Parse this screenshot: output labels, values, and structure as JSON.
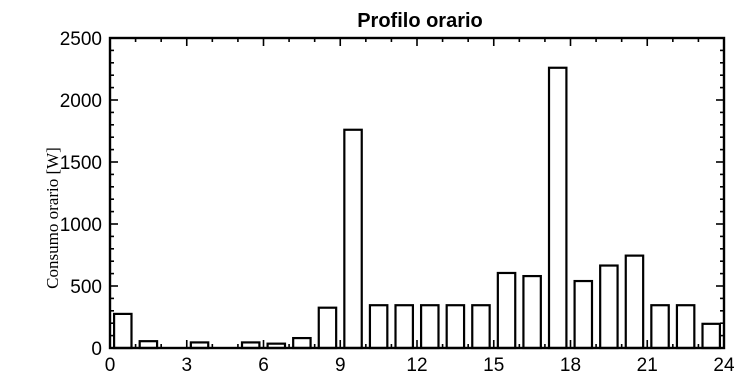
{
  "chart_data": {
    "type": "bar",
    "title": "Profilo orario",
    "xlabel": "",
    "ylabel": "Consumo orario [W]",
    "xlim": [
      0,
      24
    ],
    "ylim": [
      0,
      2500
    ],
    "xticks": [
      0,
      3,
      6,
      9,
      12,
      15,
      18,
      21,
      24
    ],
    "yticks": [
      0,
      500,
      1000,
      1500,
      2000,
      2500
    ],
    "x": [
      0,
      1,
      2,
      3,
      4,
      5,
      6,
      7,
      8,
      9,
      10,
      11,
      12,
      13,
      14,
      15,
      16,
      17,
      18,
      19,
      20,
      21,
      22,
      23
    ],
    "values": [
      275,
      55,
      0,
      45,
      0,
      45,
      35,
      80,
      325,
      1760,
      345,
      345,
      345,
      345,
      345,
      605,
      580,
      2260,
      540,
      665,
      745,
      345,
      345,
      195
    ],
    "grid": false,
    "bar_color": "#ffffff",
    "edge_color": "#000000"
  }
}
